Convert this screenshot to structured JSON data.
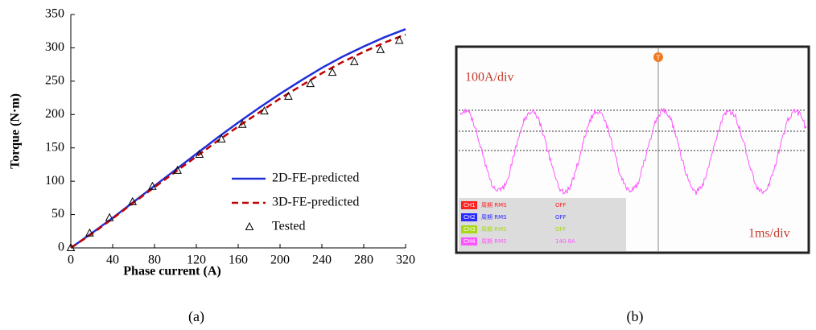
{
  "chart_data": {
    "type": "line",
    "xlabel": "Phase current (A)",
    "ylabel": "Torque (N·m)",
    "xlim": [
      0,
      320
    ],
    "xticks": [
      0,
      40,
      80,
      120,
      160,
      200,
      240,
      280,
      320
    ],
    "ylim": [
      0,
      350
    ],
    "yticks": [
      0,
      50,
      100,
      150,
      200,
      250,
      300,
      350
    ],
    "legend": "lower right",
    "series": [
      {
        "name": "2D-FE-predicted",
        "color": "#1f2fd6",
        "style": "solid",
        "x": [
          0,
          20,
          40,
          60,
          80,
          100,
          120,
          140,
          160,
          180,
          200,
          220,
          240,
          260,
          280,
          300,
          320
        ],
        "values": [
          0,
          22,
          45,
          69,
          93,
          117,
          141,
          165,
          188,
          210,
          231,
          251,
          270,
          287,
          302,
          316,
          328
        ]
      },
      {
        "name": "3D-FE-predicted",
        "color": "#c00000",
        "style": "dashed",
        "x": [
          0,
          20,
          40,
          60,
          80,
          100,
          120,
          140,
          160,
          180,
          200,
          220,
          240,
          260,
          280,
          300,
          320
        ],
        "values": [
          0,
          21,
          44,
          68,
          91,
          114,
          137,
          160,
          182,
          203,
          224,
          243,
          262,
          279,
          294,
          308,
          320
        ]
      },
      {
        "name": "Tested",
        "color": "#000000",
        "style": "triangle",
        "x": [
          0,
          18,
          37,
          59,
          78,
          102,
          123,
          144,
          164,
          185,
          208,
          229,
          250,
          271,
          296,
          314
        ],
        "values": [
          0,
          22,
          45,
          69,
          92,
          116,
          140,
          163,
          185,
          205,
          227,
          246,
          263,
          279,
          297,
          311
        ]
      }
    ]
  },
  "scope": {
    "scale_y": "100A/div",
    "scale_x": "1ms/div",
    "trigger": "T",
    "channels": [
      {
        "name": "CH1",
        "measure": "周期 RMS",
        "value": "OFF",
        "color": "#ff2020"
      },
      {
        "name": "CH2",
        "measure": "周期 RMS",
        "value": "OFF",
        "color": "#2a2aff"
      },
      {
        "name": "CH3",
        "measure": "周期 RMS",
        "value": "OFF",
        "color": "#a8d818"
      },
      {
        "name": "CH4",
        "measure": "周期 RMS",
        "value": "140.8A",
        "color": "#ff55ff"
      }
    ]
  },
  "captions": [
    "(a)",
    "(b)"
  ]
}
